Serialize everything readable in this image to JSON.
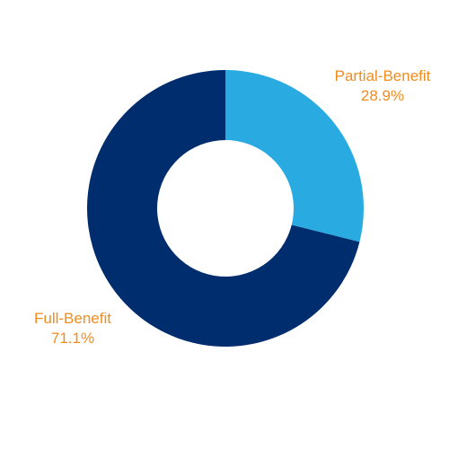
{
  "chart_data": {
    "type": "pie",
    "donut": true,
    "start_angle_deg": 0,
    "direction": "clockwise",
    "label_color": "#F08C1E",
    "slices": [
      {
        "label": "Partial-Benefit",
        "value": 28.9,
        "value_label": "28.9%",
        "color": "#29ABE2"
      },
      {
        "label": "Full-Benefit",
        "value": 71.1,
        "value_label": "71.1%",
        "color": "#002D6E"
      }
    ]
  }
}
